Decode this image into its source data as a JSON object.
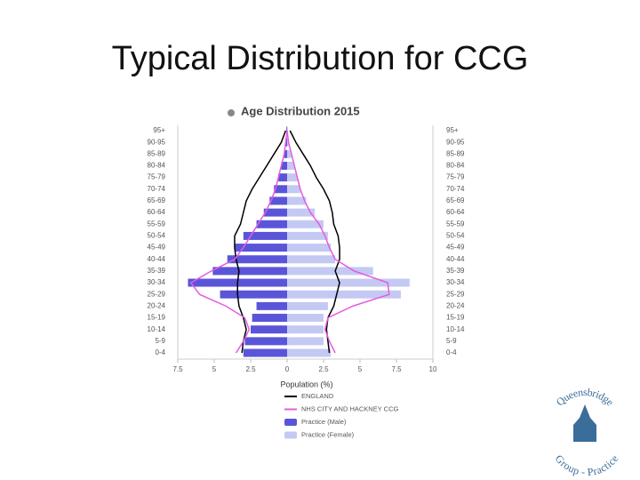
{
  "slide_title": "Typical Distribution for CCG",
  "logo": {
    "top_text": "Queensbridge",
    "bottom_text": "Group - Practice"
  },
  "chart_data": {
    "type": "pyramid",
    "title": "Age Distribution 2015",
    "x_label": "Population (%)",
    "categories": [
      "0-4",
      "5-9",
      "10-14",
      "15-19",
      "20-24",
      "25-29",
      "30-34",
      "35-39",
      "40-44",
      "45-49",
      "50-54",
      "55-59",
      "60-64",
      "65-69",
      "70-74",
      "75-79",
      "80-84",
      "85-89",
      "90-95",
      "95+"
    ],
    "xlim": [
      -7.5,
      10
    ],
    "xticks": [
      {
        "value": -7.5,
        "label": "7.5"
      },
      {
        "value": -5,
        "label": "5"
      },
      {
        "value": -2.5,
        "label": "2.5"
      },
      0,
      2.5,
      5,
      7.5,
      10
    ],
    "series": [
      {
        "name": "ENGLAND",
        "color": "#000000",
        "kind": "line",
        "male": [
          -3.1,
          -3.0,
          -2.8,
          -3.0,
          -3.3,
          -3.4,
          -3.4,
          -3.3,
          -3.5,
          -3.6,
          -3.6,
          -3.2,
          -3.0,
          -2.8,
          -2.4,
          -1.9,
          -1.4,
          -0.9,
          -0.4,
          -0.1
        ],
        "female": [
          2.9,
          2.8,
          2.7,
          2.8,
          3.2,
          3.4,
          3.6,
          3.3,
          3.6,
          3.6,
          3.5,
          3.2,
          3.1,
          2.9,
          2.5,
          2.0,
          1.6,
          1.1,
          0.6,
          0.2
        ]
      },
      {
        "name": "NHS CITY AND HACKNEY CCG",
        "color": "#e35ce0",
        "kind": "line",
        "male": [
          -3.5,
          -3.0,
          -2.6,
          -2.9,
          -4.2,
          -6.0,
          -6.6,
          -5.2,
          -3.6,
          -3.0,
          -2.5,
          -2.0,
          -1.5,
          -1.1,
          -0.8,
          -0.6,
          -0.4,
          -0.2,
          -0.1,
          0
        ],
        "female": [
          3.3,
          2.9,
          2.6,
          2.8,
          4.5,
          7.0,
          6.9,
          4.6,
          3.3,
          2.9,
          2.6,
          2.2,
          1.6,
          1.2,
          0.9,
          0.7,
          0.5,
          0.3,
          0.1,
          0
        ]
      },
      {
        "name": "Practice (Male)",
        "color": "#5a55d8",
        "kind": "bar",
        "values": [
          -3.0,
          -2.9,
          -2.5,
          -2.4,
          -2.1,
          -4.6,
          -6.8,
          -5.1,
          -4.1,
          -3.6,
          -3.0,
          -2.1,
          -1.6,
          -1.2,
          -0.9,
          -0.6,
          -0.4,
          -0.2,
          -0.1,
          -0.05
        ]
      },
      {
        "name": "Practice (Female)",
        "color": "#c4c9f3",
        "kind": "bar",
        "values": [
          3.0,
          2.5,
          2.5,
          2.5,
          2.8,
          7.8,
          8.4,
          5.9,
          3.3,
          3.0,
          2.8,
          2.5,
          1.9,
          1.3,
          0.9,
          0.7,
          0.5,
          0.3,
          0.1,
          0.05
        ]
      }
    ]
  }
}
